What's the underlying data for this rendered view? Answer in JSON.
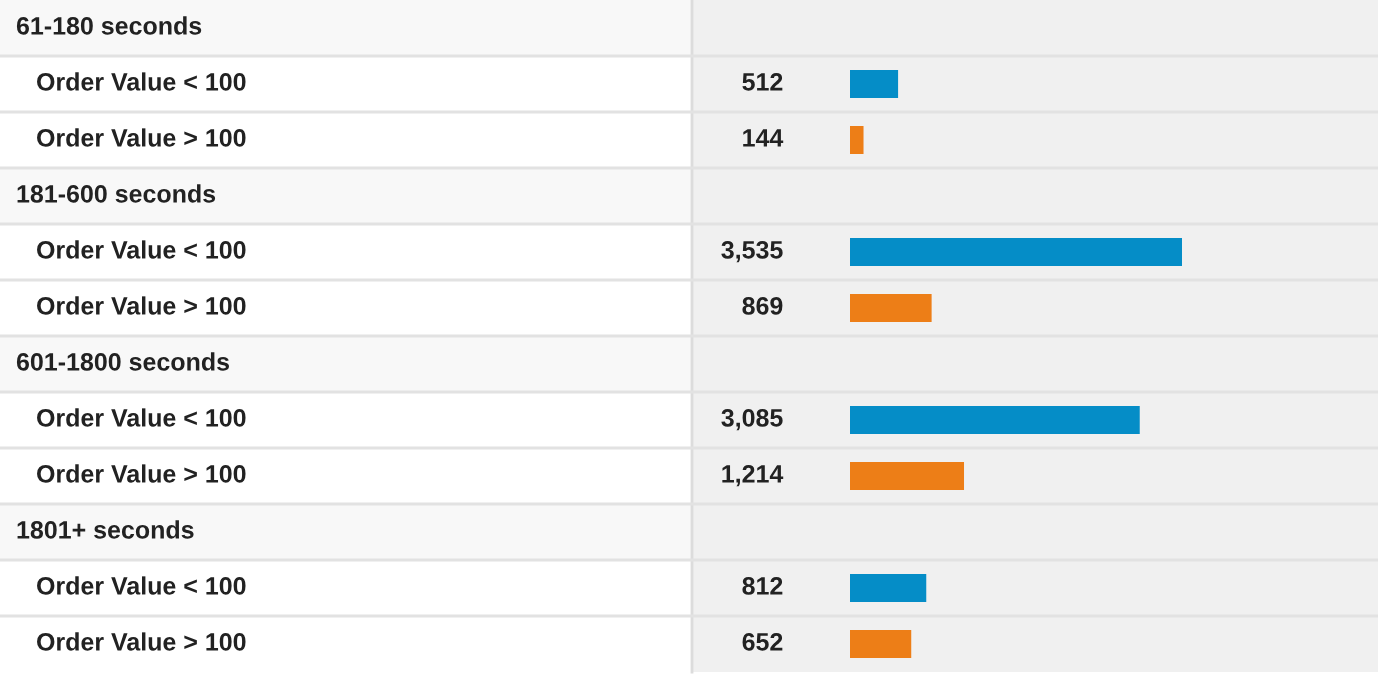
{
  "chart_data": {
    "type": "bar",
    "orientation": "horizontal",
    "categories": [
      null,
      "Order Value < 100",
      "Order Value > 100",
      null,
      "Order Value < 100",
      "Order Value > 100",
      null,
      "Order Value < 100",
      "Order Value > 100",
      null,
      "Order Value < 100",
      "Order Value > 100"
    ],
    "annotations": [
      "61-180 seconds",
      "181-600 seconds",
      "601-1800 seconds",
      "1801+ seconds"
    ],
    "values": [
      null,
      512,
      144,
      null,
      3535,
      869,
      null,
      3085,
      1214,
      null,
      812,
      652
    ],
    "colors": [
      null,
      "#058dc7",
      "#ed7e17",
      null,
      "#058dc7",
      "#ed7e17",
      null,
      "#058dc7",
      "#ed7e17",
      null,
      "#058dc7",
      "#ed7e17"
    ],
    "value_labels": [
      null,
      "512",
      "144",
      null,
      "3,535",
      "869",
      null,
      "3,085",
      "1,214",
      null,
      "812",
      "652"
    ]
  }
}
